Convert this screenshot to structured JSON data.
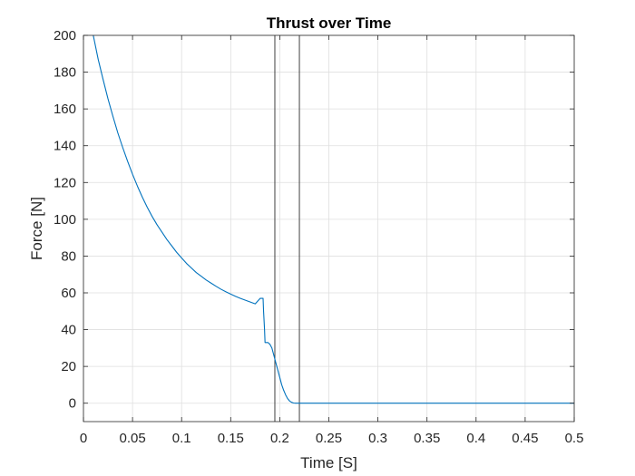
{
  "chart_data": {
    "type": "line",
    "title": "Thrust over Time",
    "xlabel": "Time [S]",
    "ylabel": "Force [N]",
    "xlim": [
      0,
      0.5
    ],
    "ylim": [
      -10,
      200
    ],
    "grid": true,
    "xticks": [
      0,
      0.05,
      0.1,
      0.15,
      0.2,
      0.25,
      0.3,
      0.35,
      0.4,
      0.45,
      0.5
    ],
    "xtick_labels": [
      "0",
      "0.05",
      "0.1",
      "0.15",
      "0.2",
      "0.25",
      "0.3",
      "0.35",
      "0.4",
      "0.45",
      "0.5"
    ],
    "yticks": [
      0,
      20,
      40,
      60,
      80,
      100,
      120,
      140,
      160,
      180,
      200
    ],
    "ytick_labels": [
      "0",
      "20",
      "40",
      "60",
      "80",
      "100",
      "120",
      "140",
      "160",
      "180",
      "200"
    ],
    "vertical_lines": [
      0.195,
      0.22
    ],
    "colors": {
      "series": "#0072bd",
      "axes": "#262626",
      "grid": "#dfdfdf",
      "vertical_lines": "#404040"
    },
    "series": [
      {
        "x": [
          0.01,
          0.015,
          0.02,
          0.025,
          0.03,
          0.035,
          0.04,
          0.045,
          0.05,
          0.055,
          0.06,
          0.065,
          0.07,
          0.075,
          0.08,
          0.085,
          0.09,
          0.095,
          0.1,
          0.105,
          0.11,
          0.115,
          0.12,
          0.125,
          0.13,
          0.135,
          0.14,
          0.145,
          0.15,
          0.155,
          0.16,
          0.165,
          0.17,
          0.175,
          0.18,
          0.183,
          0.1835,
          0.1845,
          0.185,
          0.186,
          0.188,
          0.19,
          0.192,
          0.194,
          0.196,
          0.198,
          0.2,
          0.202,
          0.204,
          0.206,
          0.208,
          0.21,
          0.212,
          0.214,
          0.216,
          0.218,
          0.22,
          0.25,
          0.3,
          0.35,
          0.4,
          0.45,
          0.5
        ],
        "y": [
          200,
          187,
          176,
          165.5,
          156,
          147,
          139,
          131.5,
          124.5,
          118,
          112,
          106.5,
          101.5,
          97,
          93,
          89,
          85.5,
          82,
          79,
          76,
          73.5,
          71,
          69,
          67,
          65.3,
          63.6,
          62,
          60.6,
          59.3,
          58.1,
          57,
          56,
          55,
          54,
          57,
          57,
          50,
          40,
          33,
          33,
          33,
          32,
          30,
          26,
          22,
          18,
          14,
          10,
          7,
          4.5,
          2.5,
          1.2,
          0.5,
          0.1,
          0,
          0,
          0,
          0,
          0,
          0,
          0,
          0,
          0
        ]
      }
    ]
  }
}
